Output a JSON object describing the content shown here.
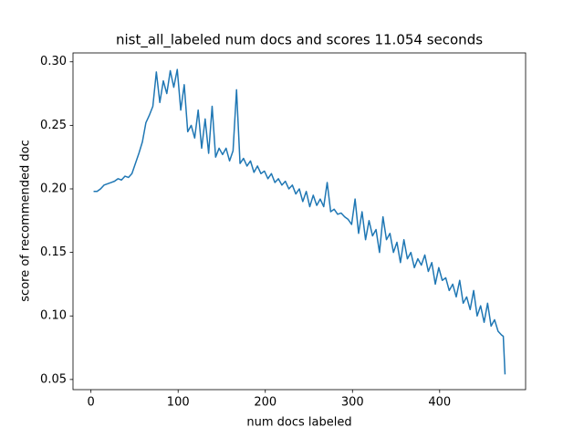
{
  "chart_data": {
    "type": "line",
    "title": "nist_all_labeled num docs and scores 11.054 seconds",
    "x_label": "num docs labeled",
    "y_label": "score of recommended doc",
    "color": "#1f77b4",
    "grid": false,
    "x": [
      3,
      7,
      11,
      15,
      19,
      23,
      27,
      31,
      35,
      39,
      43,
      47,
      51,
      55,
      59,
      63,
      67,
      71,
      75,
      79,
      83,
      87,
      91,
      95,
      99,
      103,
      107,
      111,
      115,
      119,
      123,
      127,
      131,
      135,
      139,
      143,
      147,
      151,
      155,
      159,
      163,
      167,
      171,
      175,
      179,
      183,
      187,
      191,
      195,
      199,
      203,
      207,
      211,
      215,
      219,
      223,
      227,
      231,
      235,
      239,
      243,
      247,
      251,
      255,
      259,
      263,
      267,
      271,
      275,
      279,
      283,
      287,
      291,
      295,
      299,
      303,
      307,
      311,
      315,
      319,
      323,
      327,
      331,
      335,
      339,
      343,
      347,
      351,
      355,
      359,
      363,
      367,
      371,
      375,
      379,
      383,
      387,
      391,
      395,
      399,
      403,
      407,
      411,
      415,
      419,
      423,
      427,
      431,
      435,
      439,
      443,
      447,
      451,
      455,
      459,
      463,
      467,
      471,
      473,
      475
    ],
    "values": [
      0.198,
      0.198,
      0.2,
      0.203,
      0.204,
      0.205,
      0.206,
      0.208,
      0.207,
      0.21,
      0.209,
      0.212,
      0.22,
      0.228,
      0.237,
      0.252,
      0.258,
      0.265,
      0.292,
      0.268,
      0.285,
      0.275,
      0.293,
      0.28,
      0.294,
      0.262,
      0.282,
      0.245,
      0.25,
      0.24,
      0.262,
      0.232,
      0.255,
      0.228,
      0.265,
      0.225,
      0.232,
      0.227,
      0.232,
      0.222,
      0.23,
      0.278,
      0.22,
      0.224,
      0.218,
      0.222,
      0.213,
      0.218,
      0.212,
      0.214,
      0.208,
      0.212,
      0.205,
      0.208,
      0.203,
      0.206,
      0.2,
      0.203,
      0.196,
      0.2,
      0.19,
      0.198,
      0.186,
      0.195,
      0.187,
      0.192,
      0.186,
      0.205,
      0.182,
      0.184,
      0.18,
      0.181,
      0.178,
      0.176,
      0.172,
      0.192,
      0.165,
      0.182,
      0.16,
      0.175,
      0.163,
      0.168,
      0.15,
      0.178,
      0.16,
      0.165,
      0.15,
      0.158,
      0.142,
      0.16,
      0.145,
      0.15,
      0.138,
      0.145,
      0.14,
      0.148,
      0.135,
      0.142,
      0.125,
      0.138,
      0.128,
      0.13,
      0.12,
      0.125,
      0.115,
      0.128,
      0.11,
      0.115,
      0.105,
      0.12,
      0.1,
      0.108,
      0.095,
      0.11,
      0.092,
      0.097,
      0.088,
      0.085,
      0.084,
      0.054
    ],
    "xlim": [
      -20.6,
      498.6
    ],
    "xticks": [
      0,
      100,
      200,
      300,
      400
    ],
    "ylim": [
      0.042,
      0.307
    ],
    "yticks": [
      0.05,
      {
        "value": 0.1,
        "label": "0.10"
      },
      0.15,
      {
        "value": 0.2,
        "label": "0.20"
      },
      0.25,
      {
        "value": 0.3,
        "label": "0.30"
      }
    ]
  }
}
